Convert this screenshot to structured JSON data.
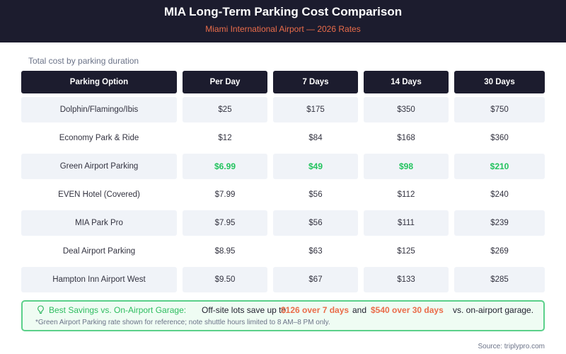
{
  "header": {
    "title": "MIA Long-Term Parking Cost Comparison",
    "subtitle": "Miami International Airport — 2026 Rates"
  },
  "caption": "Total cost by parking duration",
  "table": {
    "columns": [
      "Parking Option",
      "Per Day",
      "7 Days",
      "14 Days",
      "30 Days"
    ],
    "rows": [
      {
        "option": "Dolphin/Flamingo/Ibis",
        "per_day": "$25",
        "d7": "$175",
        "d14": "$350",
        "d30": "$750",
        "highlight": false
      },
      {
        "option": "Economy Park & Ride",
        "per_day": "$12",
        "d7": "$84",
        "d14": "$168",
        "d30": "$360",
        "highlight": false
      },
      {
        "option": "Green Airport Parking",
        "per_day": "$6.99",
        "d7": "$49",
        "d14": "$98",
        "d30": "$210",
        "highlight": true
      },
      {
        "option": "EVEN Hotel (Covered)",
        "per_day": "$7.99",
        "d7": "$56",
        "d14": "$112",
        "d30": "$240",
        "highlight": false
      },
      {
        "option": "MIA Park Pro",
        "per_day": "$7.95",
        "d7": "$56",
        "d14": "$111",
        "d30": "$239",
        "highlight": false
      },
      {
        "option": "Deal Airport Parking",
        "per_day": "$8.95",
        "d7": "$63",
        "d14": "$125",
        "d30": "$269",
        "highlight": false
      },
      {
        "option": "Hampton Inn Airport West",
        "per_day": "$9.50",
        "d7": "$67",
        "d14": "$133",
        "d30": "$285",
        "highlight": false
      }
    ]
  },
  "callout": {
    "icon": "lightbulb-icon",
    "label": "Best Savings vs. On-Airport Garage:",
    "text": "Off-site lots save up to",
    "highlight1": "$126 over 7 days",
    "and": "and",
    "highlight2": "$540 over 30 days",
    "tail": "vs. on-airport garage.",
    "note": "*Green Airport Parking rate shown for reference; note shuttle hours limited to 8 AM–8 PM only."
  },
  "source": "Source: triplypro.com",
  "colors": {
    "header_bg": "#1c1c2e",
    "accent_orange": "#ea6c4a",
    "highlight_green": "#22c35e",
    "row_shade": "#f0f3f8",
    "callout_border": "#5bd08a",
    "callout_bg": "#effcf3"
  }
}
